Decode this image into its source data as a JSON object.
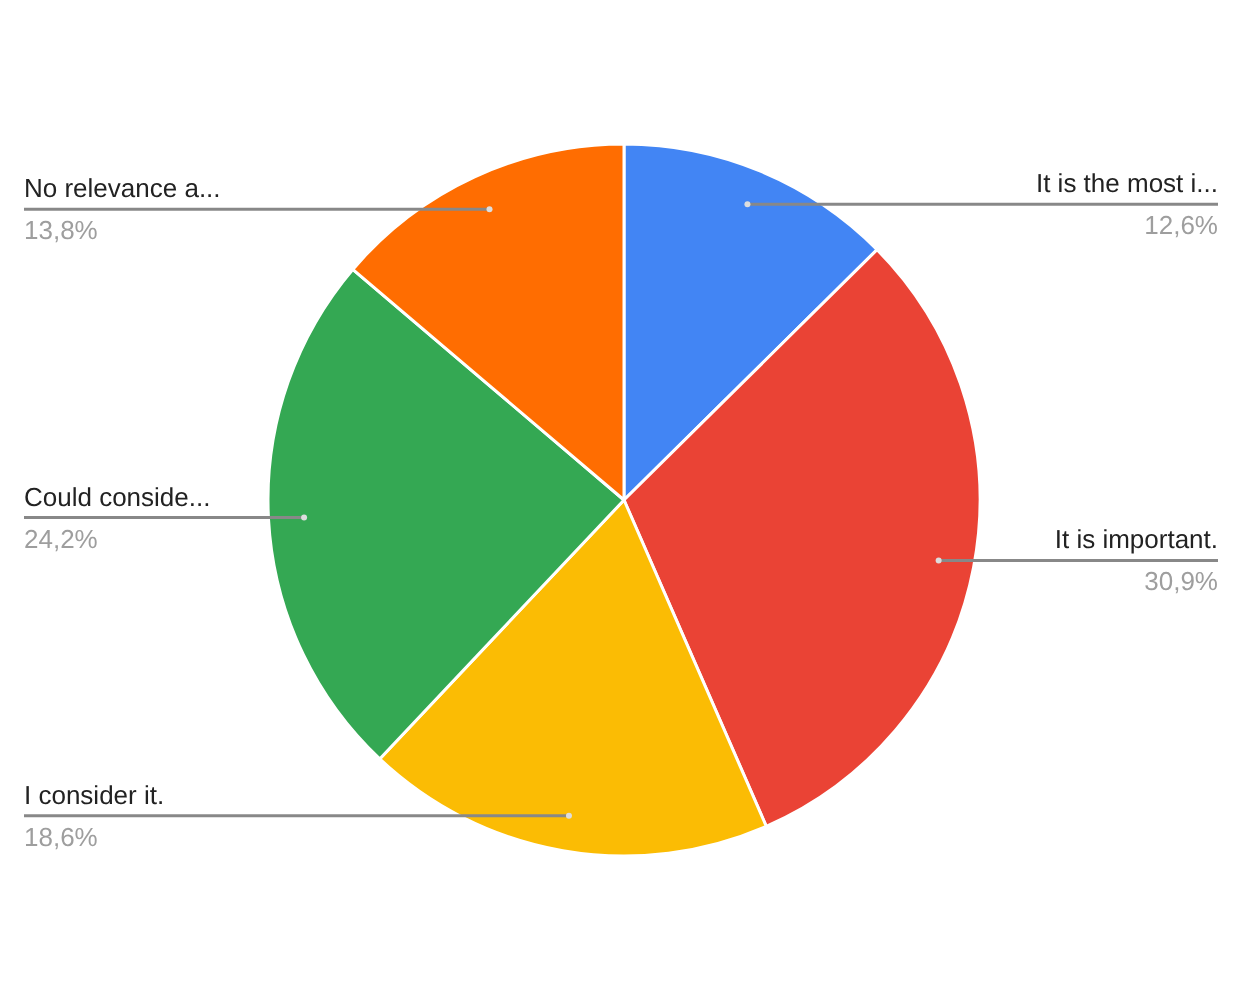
{
  "chart_data": {
    "type": "pie",
    "categories": [
      "It is the most i...",
      "It is important.",
      "I consider it.",
      "Could conside...",
      "No relevance a..."
    ],
    "values": [
      12.6,
      30.9,
      18.6,
      24.2,
      13.8
    ],
    "value_labels": [
      "12,6%",
      "30,9%",
      "18,6%",
      "24,2%",
      "13,8%"
    ],
    "colors": [
      "#4285f4",
      "#ea4335",
      "#fbbc04",
      "#34a853",
      "#ff6d01"
    ]
  }
}
